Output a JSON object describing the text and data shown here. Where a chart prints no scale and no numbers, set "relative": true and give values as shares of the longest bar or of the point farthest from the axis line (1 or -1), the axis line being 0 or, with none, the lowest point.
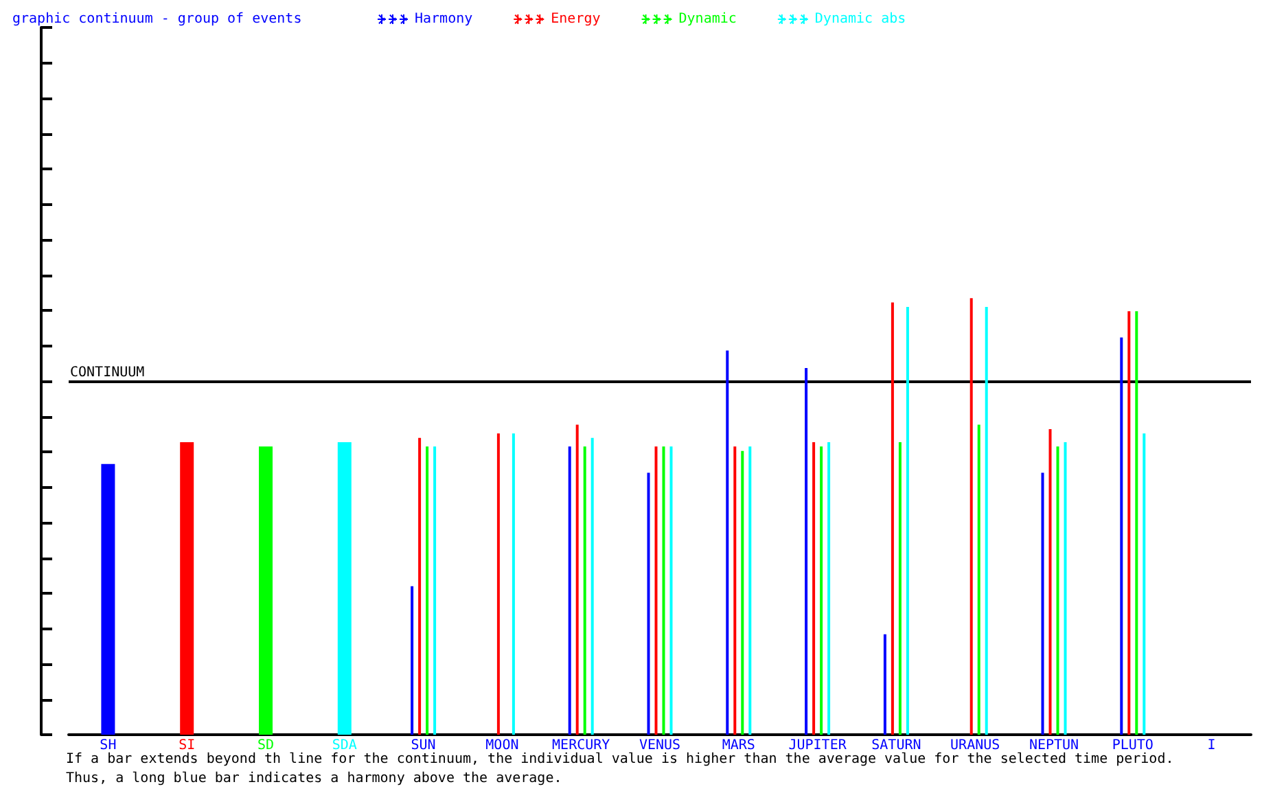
{
  "chart_data": {
    "type": "bar",
    "title": "graphic continuum - group of events",
    "relative": true,
    "grid": false,
    "legend": "top",
    "categories": [
      "SH",
      "SI",
      "SD",
      "SDA",
      "SUN",
      "MOON",
      "MERCURY",
      "VENUS",
      "MARS",
      "JUPITER",
      "SATURN",
      "URANUS",
      "NEPTUN",
      "PLUTO",
      "I"
    ],
    "series": [
      {
        "name": "Harmony",
        "color": "#0000ff",
        "values": [
          0.62,
          null,
          null,
          null,
          0.34,
          null,
          0.66,
          0.6,
          0.88,
          0.84,
          0.23,
          null,
          0.6,
          0.91,
          null
        ]
      },
      {
        "name": "Energy",
        "color": "#ff0000",
        "values": [
          null,
          0.67,
          null,
          null,
          0.68,
          0.69,
          0.71,
          0.66,
          0.66,
          0.67,
          0.99,
          1,
          0.7,
          0.97,
          null
        ]
      },
      {
        "name": "Dynamic",
        "color": "#00ff00",
        "values": [
          null,
          null,
          0.66,
          null,
          0.66,
          null,
          0.66,
          0.66,
          0.65,
          0.66,
          0.67,
          0.71,
          0.66,
          0.97,
          null
        ]
      },
      {
        "name": "Dynamic abs",
        "color": "#00ffff",
        "values": [
          null,
          null,
          null,
          0.67,
          0.66,
          0.69,
          0.68,
          0.66,
          0.66,
          0.67,
          0.98,
          0.98,
          0.67,
          0.69,
          null
        ]
      }
    ],
    "ref_lines": [
      {
        "axis": "y",
        "value": 0.81,
        "label": "CONTINUUM",
        "color": "#000000"
      }
    ],
    "annotations": [
      "If a bar extends beyond th line for the continuum, the individual value is higher than the average value for the selected time period.",
      "Thus, a long blue bar indicates a harmony above the average."
    ]
  }
}
